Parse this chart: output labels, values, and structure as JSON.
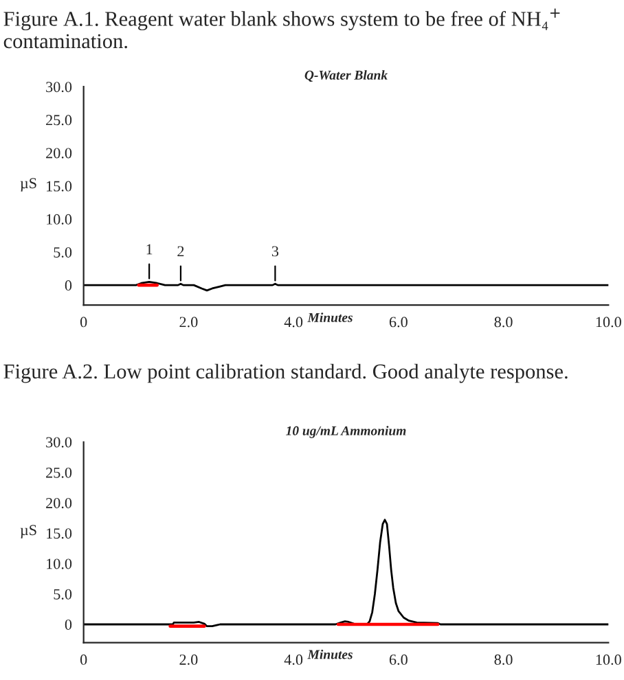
{
  "chart_data": [
    {
      "type": "line",
      "title": "Figure A.1. Reagent water blank shows system to be free of NH₄$^{+}$ contamination.",
      "subtitle": "Q-Water Blank",
      "xlabel": "Minutes",
      "ylabel": "µS",
      "xlim": [
        0,
        10
      ],
      "ylim": [
        -3,
        30
      ],
      "xticks": [
        0,
        {
          "value": 2,
          "label": "2.0"
        },
        {
          "value": 4,
          "label": "4.0"
        },
        {
          "value": 6,
          "label": "6.0"
        },
        {
          "value": 8,
          "label": "8.0"
        },
        {
          "value": 10,
          "label": "10.0"
        }
      ],
      "yticks": [
        0,
        {
          "value": 5,
          "label": "5.0"
        },
        {
          "value": 10,
          "label": "10.0"
        },
        {
          "value": 15,
          "label": "15.0"
        },
        {
          "value": 20,
          "label": "20.0"
        },
        {
          "value": 25,
          "label": "25.0"
        },
        {
          "value": 30,
          "label": "30.0"
        }
      ],
      "grid": false,
      "legend": false,
      "marker": "none",
      "line_style": "solid",
      "series": [
        {
          "color": "#000000",
          "x": [
            0,
            1.0,
            1.1,
            1.25,
            1.4,
            1.5,
            1.55,
            1.8,
            1.85,
            1.9,
            2.1,
            2.25,
            2.35,
            2.45,
            2.6,
            2.7,
            3.6,
            3.65,
            3.7,
            10
          ],
          "values": [
            0,
            0,
            0.3,
            0.5,
            0.3,
            0.1,
            0,
            0,
            0.2,
            0,
            0,
            -0.5,
            -0.8,
            -0.5,
            -0.2,
            0,
            0,
            0.2,
            0,
            0
          ]
        },
        {
          "color": "#ff0000",
          "x": [
            1.05,
            1.4
          ],
          "values": [
            0,
            0
          ]
        }
      ],
      "annotations": [
        {
          "text": "1",
          "x": 1.25,
          "y": 0.5
        },
        {
          "text": "2",
          "x": 1.85,
          "y": 0.2
        },
        {
          "text": "3",
          "x": 3.65,
          "y": 0.2
        }
      ]
    },
    {
      "type": "line",
      "title": "Figure A.2. Low point calibration standard. Good analyte response.",
      "subtitle": "10 ug/mL Ammonium",
      "xlabel": "Minutes",
      "ylabel": "µS",
      "xlim": [
        0,
        10
      ],
      "ylim": [
        -3,
        30
      ],
      "xticks": [
        0,
        {
          "value": 2,
          "label": "2.0"
        },
        {
          "value": 4,
          "label": "4.0"
        },
        {
          "value": 6,
          "label": "6.0"
        },
        {
          "value": 8,
          "label": "8.0"
        },
        {
          "value": 10,
          "label": "10.0"
        }
      ],
      "yticks": [
        0,
        {
          "value": 5,
          "label": "5.0"
        },
        {
          "value": 10,
          "label": "10.0"
        },
        {
          "value": 15,
          "label": "15.0"
        },
        {
          "value": 20,
          "label": "20.0"
        },
        {
          "value": 25,
          "label": "25.0"
        },
        {
          "value": 30,
          "label": "30.0"
        }
      ],
      "grid": false,
      "legend": false,
      "marker": "none",
      "line_style": "solid",
      "series": [
        {
          "color": "#000000",
          "x": [
            0,
            1.7,
            1.72,
            2.1,
            2.2,
            2.3,
            2.35,
            2.45,
            2.55,
            2.6,
            4.8,
            4.9,
            4.98,
            5.05,
            5.15,
            5.2,
            5.4,
            5.45,
            5.5,
            5.55,
            5.6,
            5.65,
            5.7,
            5.74,
            5.78,
            5.82,
            5.86,
            5.9,
            5.95,
            6.0,
            6.1,
            6.2,
            6.35,
            6.75,
            6.8,
            10
          ],
          "values": [
            0,
            0,
            0.3,
            0.3,
            0.4,
            0.1,
            -0.3,
            -0.3,
            -0.1,
            0,
            0,
            0.3,
            0.5,
            0.4,
            0.1,
            0,
            0,
            0.5,
            2,
            5,
            9,
            13.5,
            16.5,
            17.2,
            16.5,
            13,
            9,
            6,
            3.5,
            2.2,
            1.1,
            0.6,
            0.3,
            0.2,
            0,
            0
          ]
        },
        {
          "color": "#ff0000",
          "x": [
            1.65,
            2.3
          ],
          "values": [
            -0.3,
            -0.3
          ]
        },
        {
          "color": "#ff0000",
          "x": [
            4.85,
            6.75
          ],
          "values": [
            0,
            0
          ]
        }
      ]
    }
  ]
}
